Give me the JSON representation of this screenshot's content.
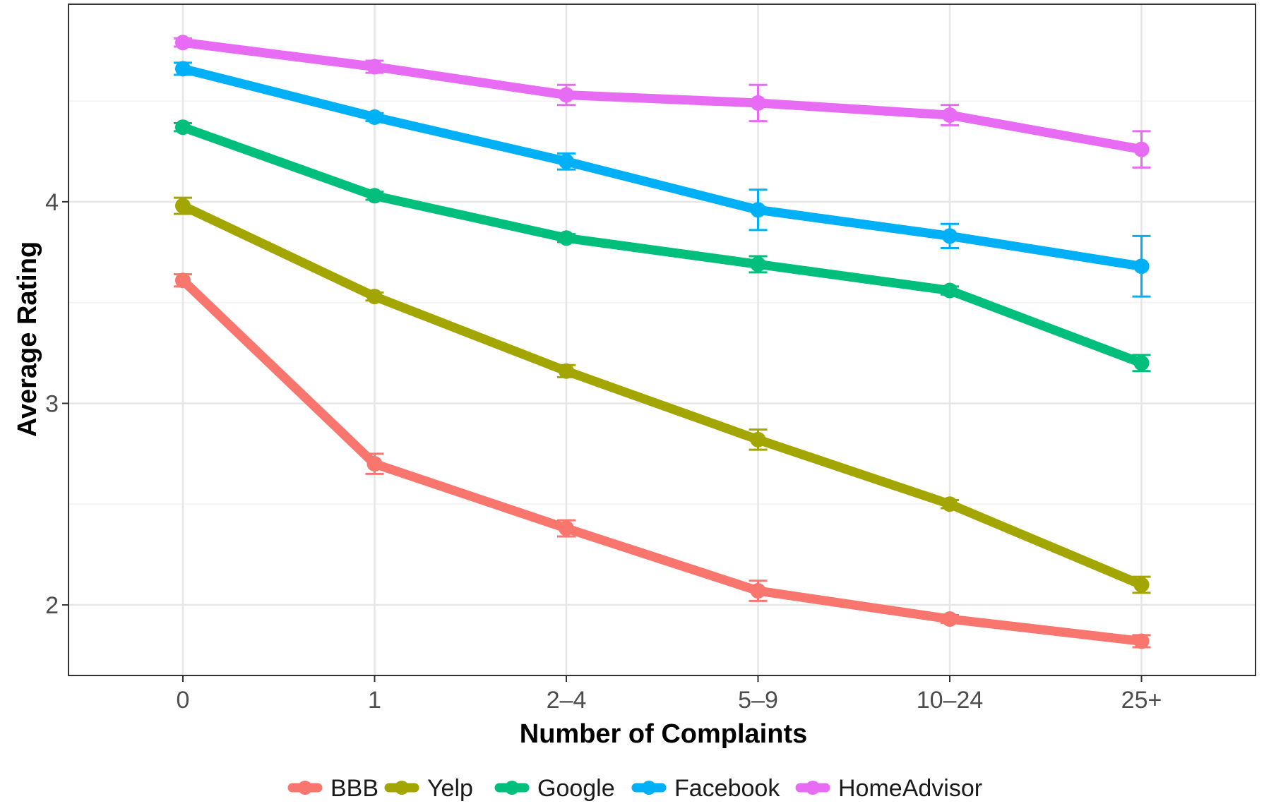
{
  "chart_data": {
    "type": "line",
    "title": "",
    "xlabel": "Number of Complaints",
    "ylabel": "Average Rating",
    "categories": [
      "0",
      "1",
      "2–4",
      "5–9",
      "10–24",
      "25+"
    ],
    "ylim": [
      1.65,
      4.98
    ],
    "y_ticks": [
      "2",
      "3",
      "4"
    ],
    "grid": true,
    "legend_position": "bottom",
    "series": [
      {
        "name": "BBB",
        "color": "#F8766D",
        "values": [
          3.61,
          2.7,
          2.38,
          2.07,
          1.93,
          1.82
        ],
        "error": [
          0.03,
          0.05,
          0.04,
          0.05,
          0.02,
          0.03
        ]
      },
      {
        "name": "Yelp",
        "color": "#A3A500",
        "values": [
          3.98,
          3.53,
          3.16,
          2.82,
          2.5,
          2.1
        ],
        "error": [
          0.04,
          0.02,
          0.03,
          0.05,
          0.02,
          0.04
        ]
      },
      {
        "name": "Google",
        "color": "#00BF7D",
        "values": [
          4.37,
          4.03,
          3.82,
          3.69,
          3.56,
          3.2
        ],
        "error": [
          0.02,
          0.02,
          0.02,
          0.04,
          0.02,
          0.04
        ]
      },
      {
        "name": "Facebook",
        "color": "#00B0F6",
        "values": [
          4.66,
          4.42,
          4.2,
          3.96,
          3.83,
          3.68
        ],
        "error": [
          0.03,
          0.02,
          0.04,
          0.1,
          0.06,
          0.15
        ]
      },
      {
        "name": "HomeAdvisor",
        "color": "#E76BF3",
        "values": [
          4.79,
          4.67,
          4.53,
          4.49,
          4.43,
          4.26
        ],
        "error": [
          0.02,
          0.03,
          0.05,
          0.09,
          0.05,
          0.09
        ]
      }
    ]
  }
}
